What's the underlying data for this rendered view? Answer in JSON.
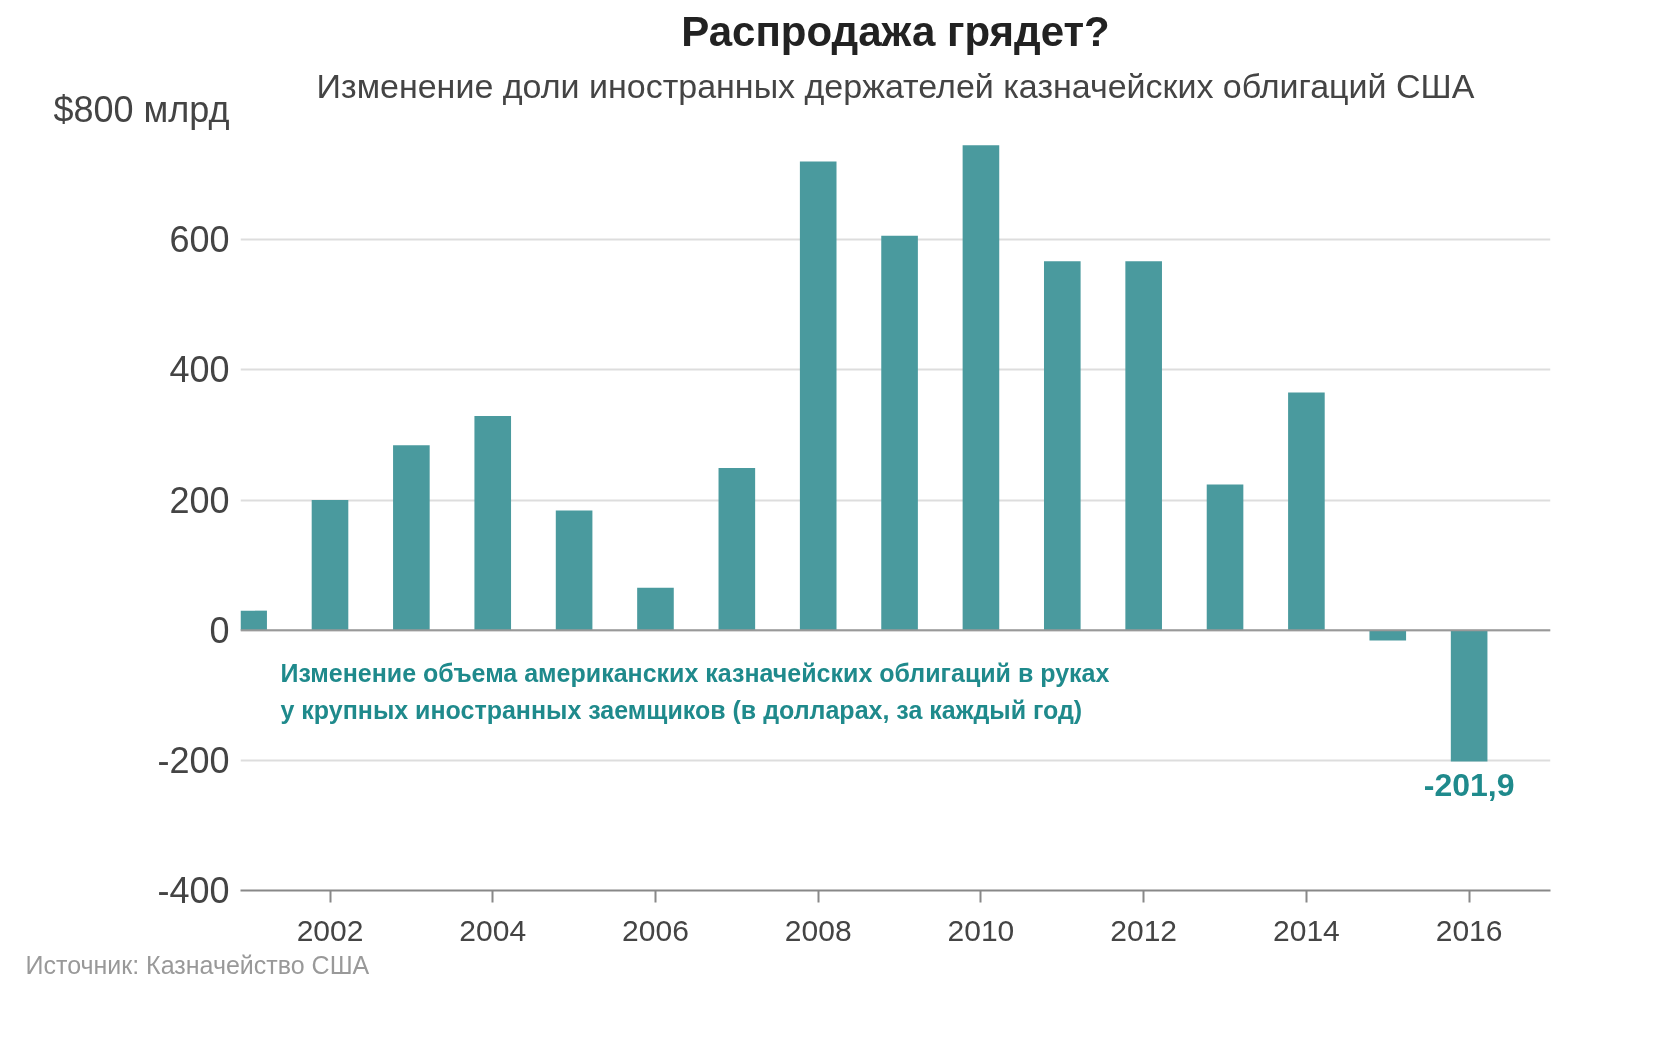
{
  "chart_data": {
    "type": "bar",
    "title": "Распродажа грядет?",
    "subtitle": "Изменение доли иностранных держателей казначейских облигаций США",
    "x": [
      2001,
      2002,
      2003,
      2004,
      2005,
      2006,
      2007,
      2008,
      2009,
      2010,
      2011,
      2012,
      2013,
      2014,
      2015,
      2016
    ],
    "values": [
      30,
      200,
      284,
      329,
      184,
      65,
      249,
      720,
      606,
      745,
      567,
      567,
      224,
      365,
      -16,
      -201.9
    ],
    "value_labels": [
      null,
      null,
      null,
      null,
      null,
      null,
      null,
      null,
      null,
      null,
      null,
      null,
      null,
      null,
      null,
      "-201,9"
    ],
    "color": "#4a9a9e",
    "xlim": [
      2000.9,
      2017
    ],
    "xticks": [
      2002,
      2004,
      2006,
      2008,
      2010,
      2012,
      2014,
      2016
    ],
    "ylim": [
      -400,
      800
    ],
    "yticks": [
      -400,
      -200,
      0,
      200,
      400,
      600,
      {
        "value": 800,
        "label": "$800 млрд"
      }
    ],
    "grid": "y",
    "annotations": [
      "Изменение объема американских казначейских облигаций в руках\nу крупных иностранных заемщиков (в долларах, за каждый год)",
      "Источник: Казначейство США"
    ]
  }
}
